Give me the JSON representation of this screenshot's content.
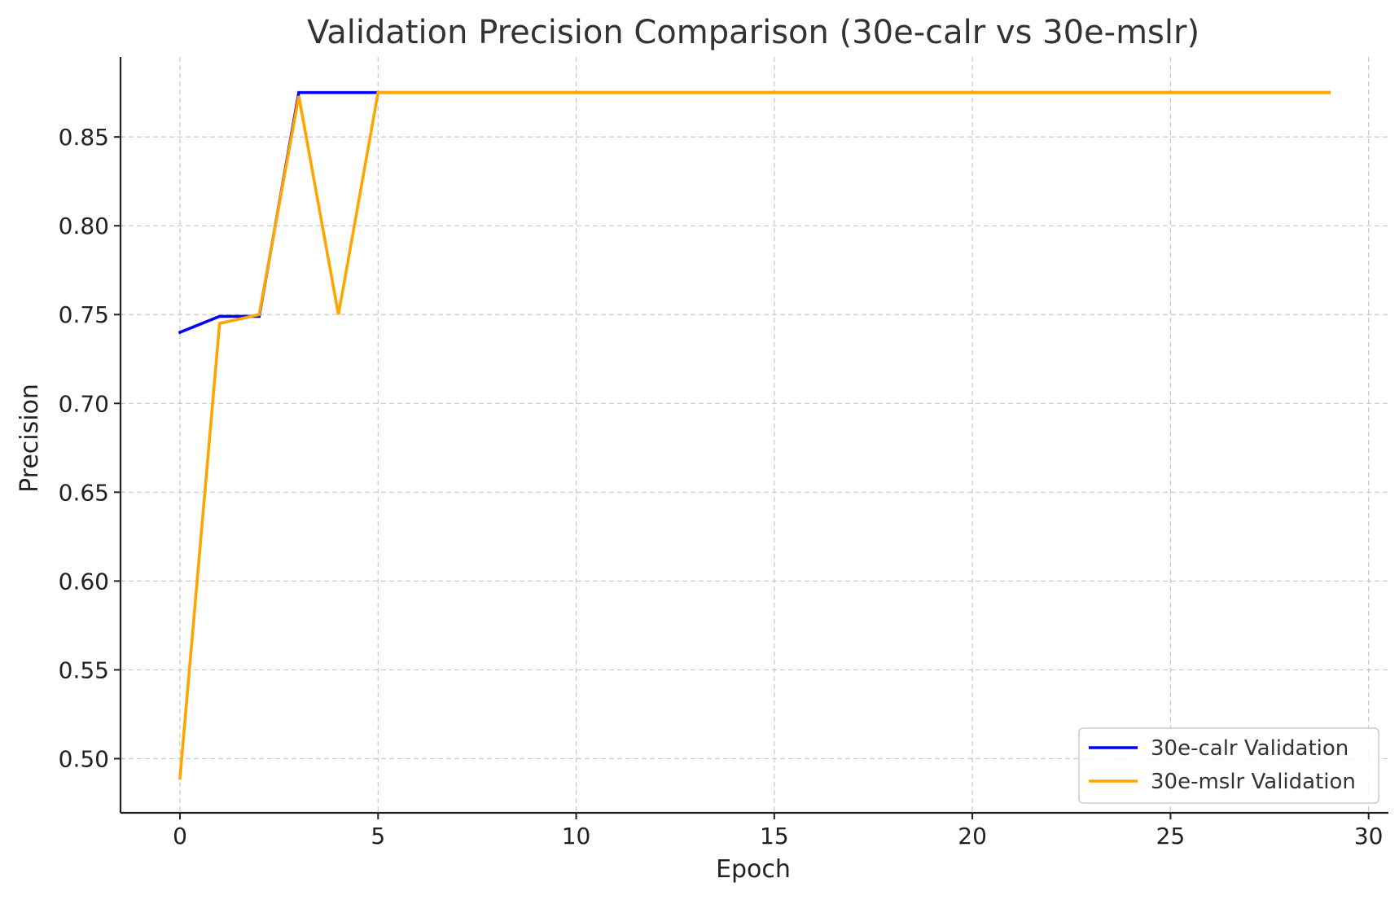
{
  "chart_data": {
    "type": "line",
    "title": "Validation Precision Comparison (30e-calr vs 30e-mslr)",
    "xlabel": "Epoch",
    "ylabel": "Precision",
    "xlim": [
      -1.5,
      30.5
    ],
    "ylim": [
      0.4695,
      0.895
    ],
    "xticks": [
      0,
      5,
      10,
      15,
      20,
      25,
      30
    ],
    "xtick_labels": [
      "0",
      "5",
      "10",
      "15",
      "20",
      "25",
      "30"
    ],
    "yticks": [
      0.5,
      0.55,
      0.6,
      0.65,
      0.7,
      0.75,
      0.8,
      0.85
    ],
    "ytick_labels": [
      "0.50",
      "0.55",
      "0.60",
      "0.65",
      "0.70",
      "0.75",
      "0.80",
      "0.85"
    ],
    "grid": true,
    "legend_position": "bottom-right",
    "x": [
      0,
      1,
      2,
      3,
      4,
      5,
      6,
      7,
      8,
      9,
      10,
      11,
      12,
      13,
      14,
      15,
      16,
      17,
      18,
      19,
      20,
      21,
      22,
      23,
      24,
      25,
      26,
      27,
      28,
      29
    ],
    "series": [
      {
        "name": "30e-calr Validation",
        "color": "#0000ff",
        "values": [
          0.74,
          0.749,
          0.749,
          0.875,
          0.875,
          0.875,
          0.875,
          0.875,
          0.875,
          0.875,
          0.875,
          0.875,
          0.875,
          0.875,
          0.875,
          0.875,
          0.875,
          0.875,
          0.875,
          0.875,
          0.875,
          0.875,
          0.875,
          0.875,
          0.875,
          0.875,
          0.875,
          0.875,
          0.875,
          0.875
        ]
      },
      {
        "name": "30e-mslr Validation",
        "color": "#ffa500",
        "values": [
          0.489,
          0.745,
          0.75,
          0.873,
          0.75,
          0.875,
          0.875,
          0.875,
          0.875,
          0.875,
          0.875,
          0.875,
          0.875,
          0.875,
          0.875,
          0.875,
          0.875,
          0.875,
          0.875,
          0.875,
          0.875,
          0.875,
          0.875,
          0.875,
          0.875,
          0.875,
          0.875,
          0.875,
          0.875,
          0.875
        ]
      }
    ]
  }
}
